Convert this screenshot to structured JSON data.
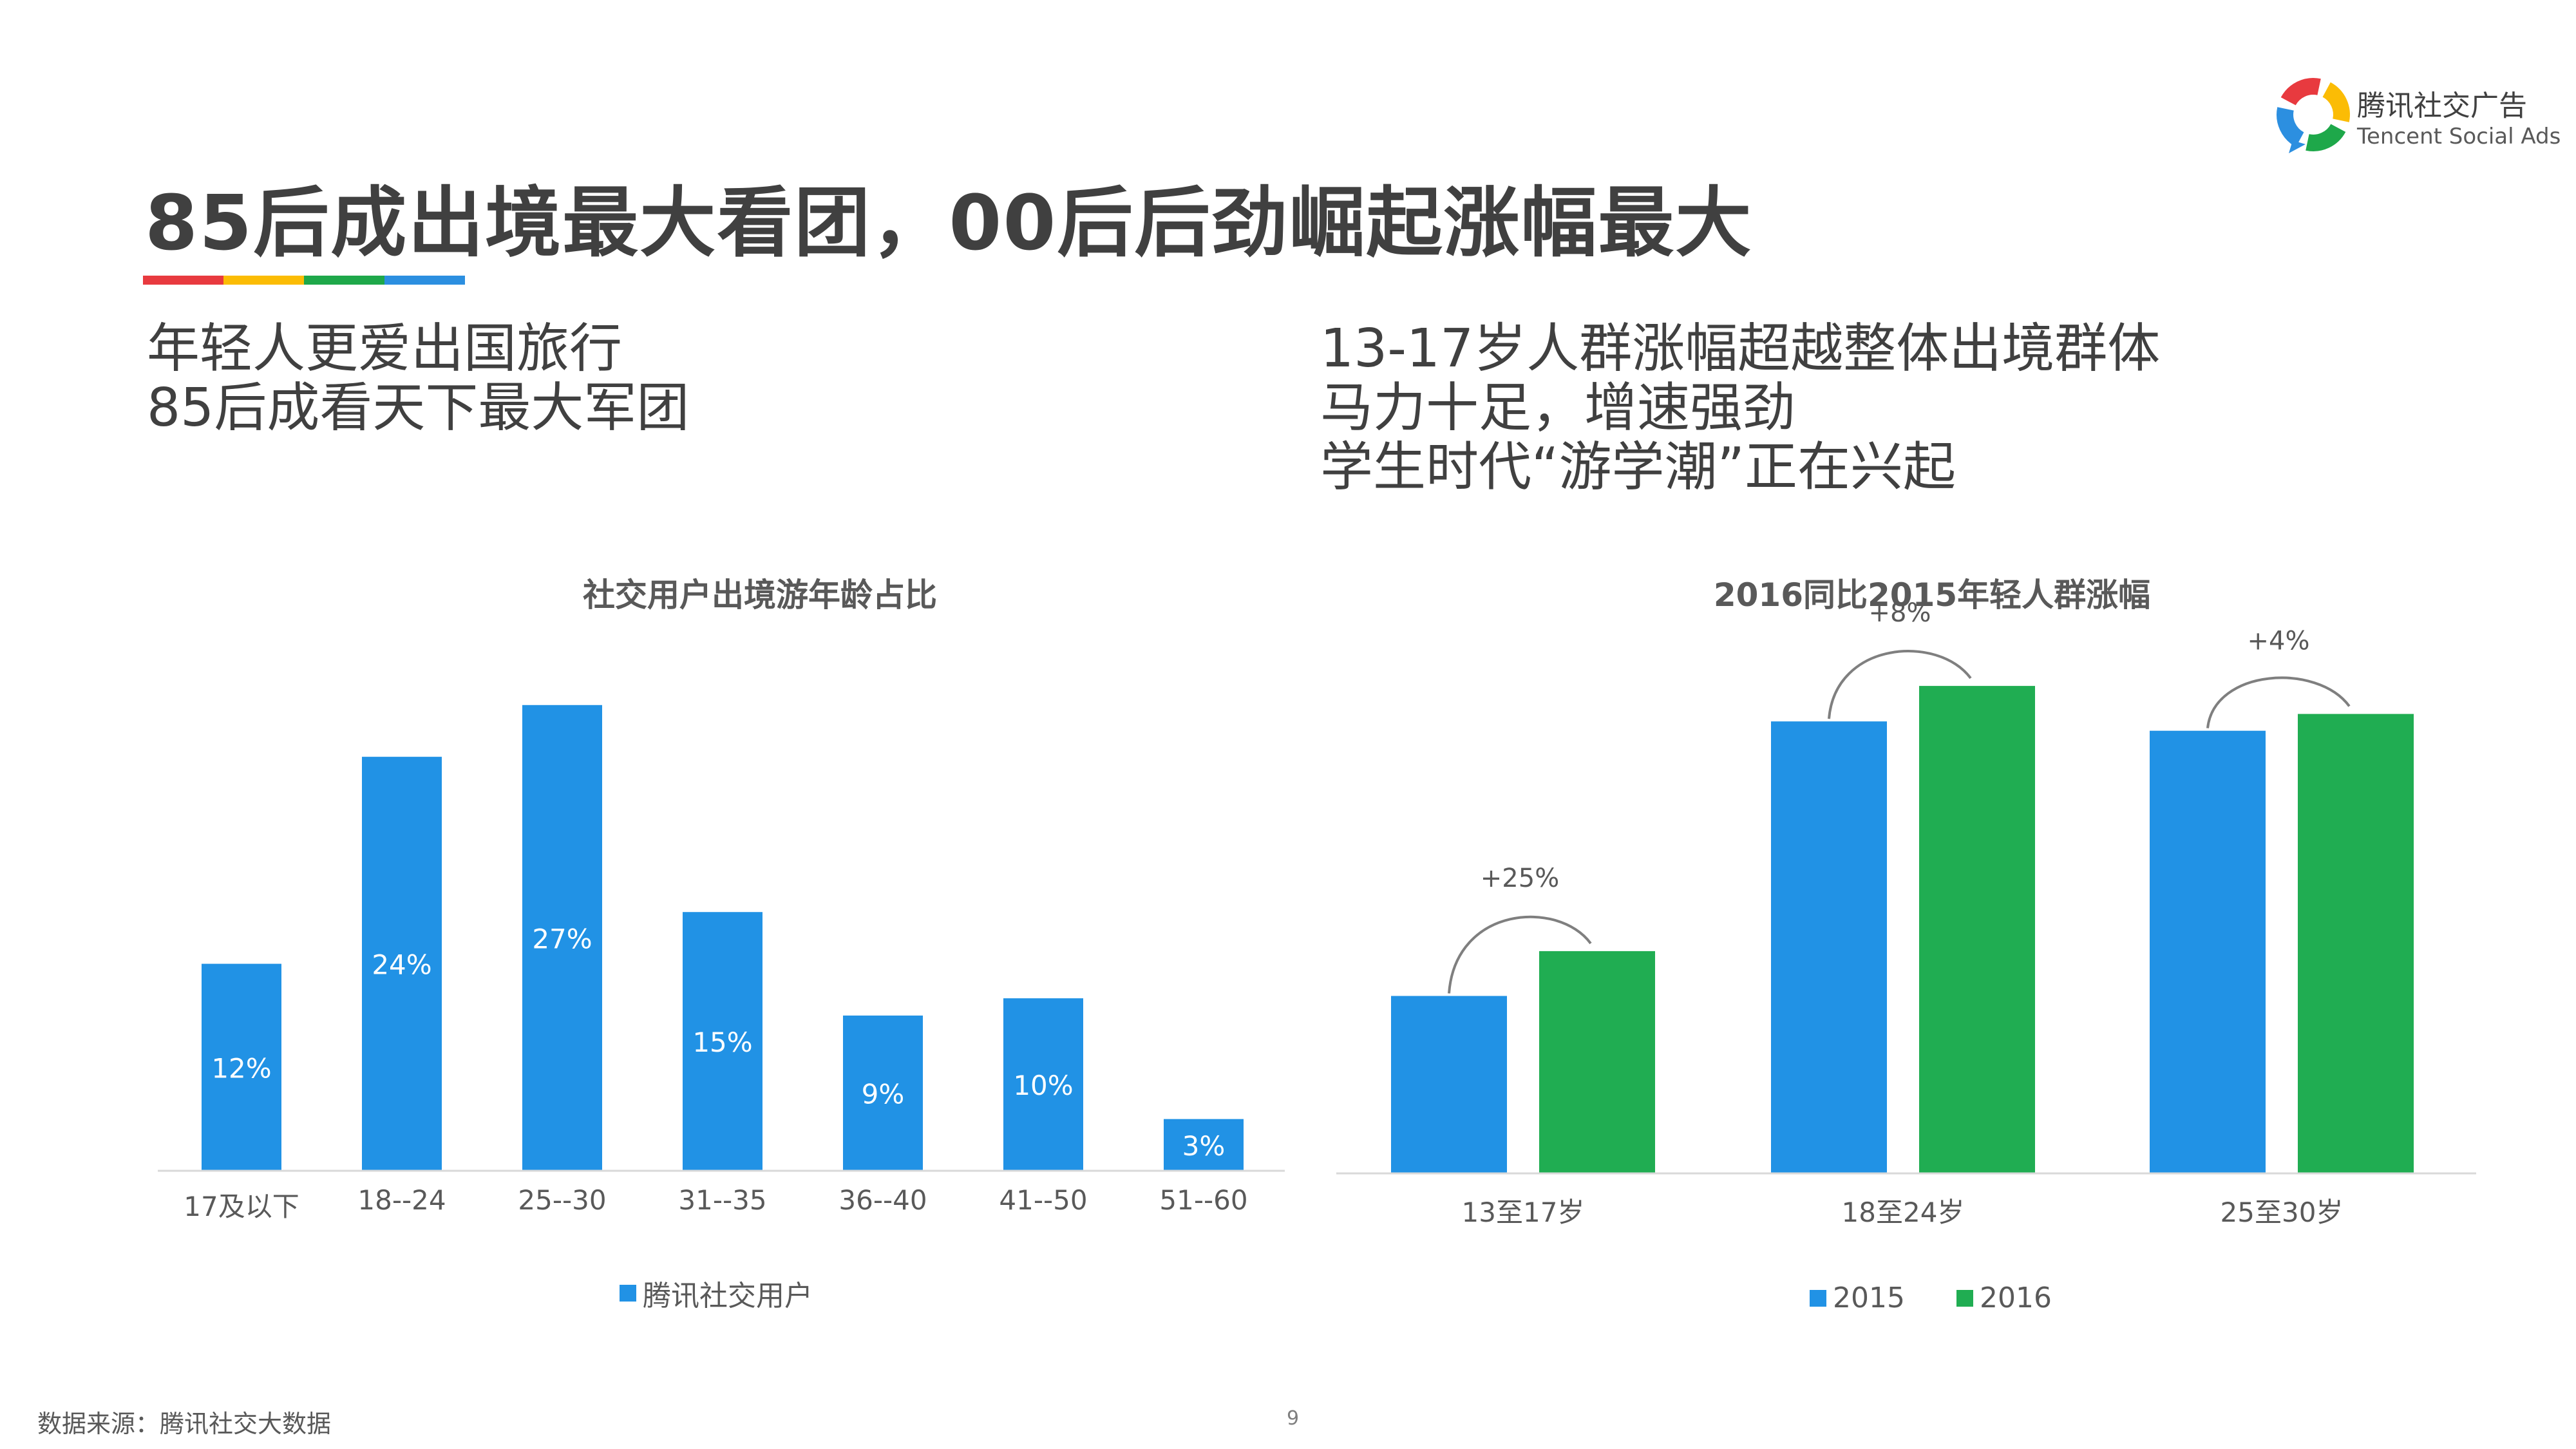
{
  "title": "85后成出境最大看团，00后后劲崛起涨幅最大",
  "brand": {
    "name_cn": "腾讯社交广告",
    "name_en": "Tencent Social Ads",
    "ring_colors": [
      "#e83a3f",
      "#fbbc05",
      "#1ea84a",
      "#2c8fe0"
    ]
  },
  "divider_colors": [
    "#e83a3f",
    "#fbbc05",
    "#1ea84a",
    "#2c8fe0"
  ],
  "left_points": [
    "年轻人更爱出国旅行",
    "85后成看天下最大军团"
  ],
  "right_points": [
    "13-17岁人群涨幅超越整体出境群体",
    "马力十足，增速强劲",
    "学生时代“游学潮”正在兴起"
  ],
  "chart_data": [
    {
      "type": "bar",
      "title": "社交用户出境游年龄占比",
      "categories": [
        "17及以下",
        "18--24",
        "25--30",
        "31--35",
        "36--40",
        "41--50",
        "51--60"
      ],
      "series": [
        {
          "name": "腾讯社交用户",
          "values": [
            12,
            24,
            27,
            15,
            9,
            10,
            3
          ],
          "color": "#2192e5"
        }
      ],
      "data_labels": [
        "12%",
        "24%",
        "27%",
        "15%",
        "9%",
        "10%",
        "3%"
      ],
      "ylim": [
        0,
        28
      ],
      "grid": false,
      "legend": "bottom"
    },
    {
      "type": "bar",
      "title": "2016同比2015年轻人群涨幅",
      "categories": [
        "13至17岁",
        "18至24岁",
        "25至30岁"
      ],
      "series": [
        {
          "name": "2015",
          "values": [
            9.5,
            24.2,
            23.7
          ],
          "color": "#2192e5"
        },
        {
          "name": "2016",
          "values": [
            11.9,
            26.1,
            24.6
          ],
          "color": "#20ad52"
        }
      ],
      "annotations": [
        "+25%",
        "+8%",
        "+4%"
      ],
      "ylim": [
        0,
        30
      ],
      "grid": false,
      "legend": "bottom"
    }
  ],
  "footer": {
    "source": "数据来源：腾讯社交大数据",
    "page_number": "9"
  }
}
